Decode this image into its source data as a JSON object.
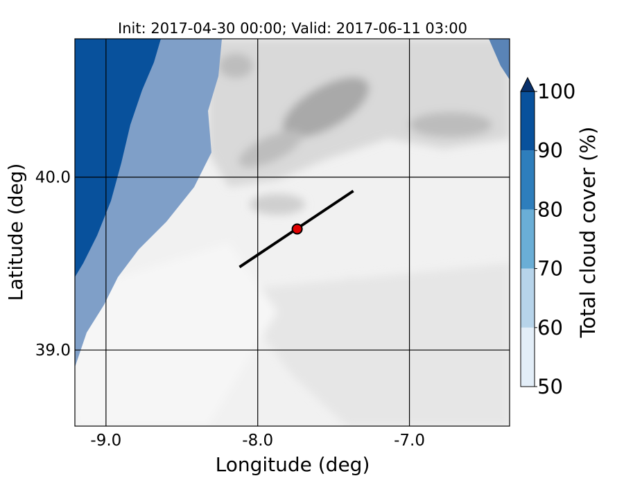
{
  "chart_data": {
    "type": "map",
    "title": "Init: 2017-04-30 00:00; Valid: 2017-06-11 03:00",
    "x_label": "Longitude (deg)",
    "y_label": "Latitude (deg)",
    "xlim": [
      -9.205,
      -6.34
    ],
    "ylim": [
      38.56,
      40.8
    ],
    "xticks": [
      {
        "value": -9,
        "label": "-9.0"
      },
      {
        "value": -8,
        "label": "-8.0"
      },
      {
        "value": -7,
        "label": "-7.0"
      }
    ],
    "yticks": [
      {
        "value": 39,
        "label": "39.0"
      },
      {
        "value": 40,
        "label": "40.0"
      }
    ],
    "grid": true,
    "cross_section": {
      "lon": [
        -8.12,
        -7.37
      ],
      "lat": [
        39.48,
        39.92
      ],
      "color": "#000000"
    },
    "point": {
      "lon": -7.74,
      "lat": 39.7,
      "color": "#e00000"
    },
    "colorbar": {
      "label": "Total cloud cover (%)",
      "levels": [
        50,
        60,
        70,
        80,
        90,
        100
      ],
      "colors": [
        "#e3eef8",
        "#b7d4ea",
        "#6aaed6",
        "#2e7ebc",
        "#08519c"
      ],
      "extend_color": "#08306b"
    }
  }
}
